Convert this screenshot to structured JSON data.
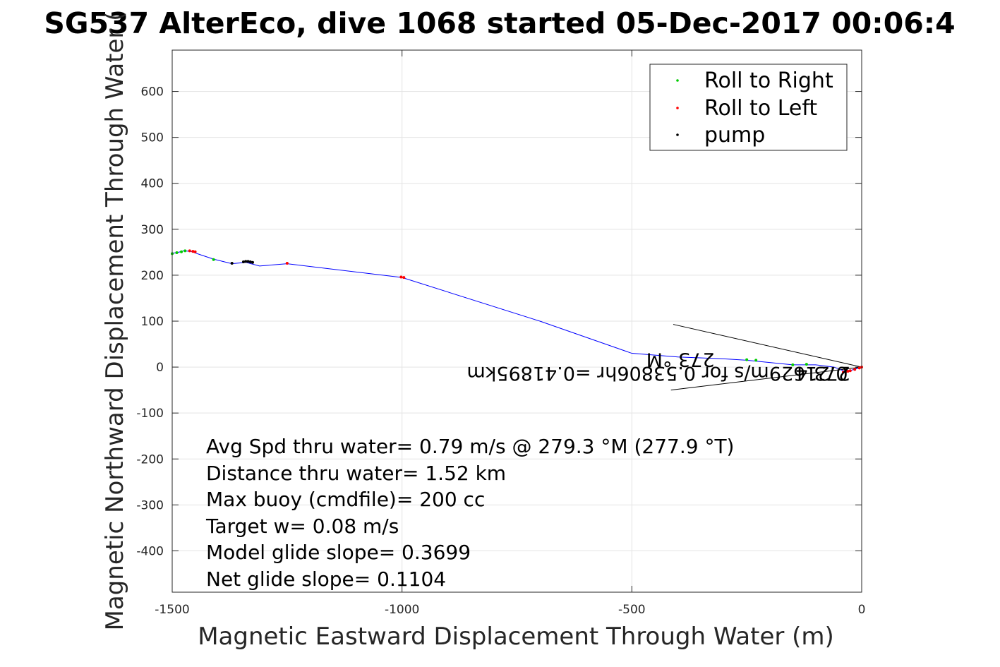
{
  "chart_data": {
    "type": "scatter",
    "title": "SG537 AlterEco, dive 1068 started 05-Dec-2017 00:06:4",
    "xlabel": "Magnetic Eastward Displacement Through Water (m)",
    "ylabel": "Magnetic Northward Displacement Through Water (",
    "xlim": [
      -1500,
      0
    ],
    "ylim": [
      -490,
      690
    ],
    "xticks": [
      -1500,
      -1000,
      -500,
      0
    ],
    "yticks": [
      -400,
      -300,
      -200,
      -100,
      0,
      100,
      200,
      300,
      400,
      500,
      600
    ],
    "grid": true,
    "legend": {
      "placement": "top-right",
      "entries": [
        {
          "label": "Roll to Right",
          "color": "#00cc00"
        },
        {
          "label": "Roll to Left",
          "color": "#ff0000"
        },
        {
          "label": "pump",
          "color": "#000000"
        }
      ]
    },
    "track": {
      "name": "glider track",
      "color": "#0000ff",
      "x": [
        0,
        -10,
        -20,
        -30,
        -40,
        -60,
        -100,
        -150,
        -200,
        -250,
        -300,
        -400,
        -500,
        -700,
        -1000,
        -1250,
        -1310,
        -1340,
        -1370,
        -1410,
        -1440,
        -1460,
        -1475,
        -1490,
        -1500
      ],
      "y": [
        0,
        -3,
        -6,
        -10,
        -8,
        0,
        5,
        5,
        10,
        15,
        18,
        22,
        30,
        100,
        195,
        225,
        220,
        228,
        225,
        235,
        245,
        252,
        253,
        249,
        248
      ]
    },
    "roll_right": {
      "x": [
        -1500,
        -1490,
        -1480,
        -1472,
        -1410,
        -250,
        -230,
        -150,
        -120
      ],
      "y": [
        247,
        249,
        251,
        253,
        234,
        16,
        15,
        5,
        6
      ]
    },
    "roll_left": {
      "x": [
        -1462,
        -1455,
        -1450,
        -1002,
        -996,
        -1250,
        -40,
        -35,
        -30,
        -25,
        -15,
        -5,
        0
      ],
      "y": [
        253,
        252,
        251,
        196,
        195,
        226,
        -11,
        -10,
        -9,
        -8,
        -5,
        -2,
        0
      ]
    },
    "pump": {
      "x": [
        -1370,
        -1345,
        -1340,
        -1335,
        -1330,
        -1325
      ],
      "y": [
        226,
        229,
        230,
        230,
        229,
        228
      ]
    },
    "current_wedge": {
      "upper": {
        "x": [
          -410,
          0
        ],
        "y": [
          93,
          0
        ]
      },
      "lower": {
        "x": [
          -415,
          0
        ],
        "y": [
          -50,
          0
        ]
      }
    },
    "flipped_labels": [
      {
        "text": "0.21629m/s for 0.53806hr =0.41895km",
        "x": -30,
        "y": 0
      },
      {
        "text": "273.4",
        "x": -25,
        "y": 0
      },
      {
        "text": "273 °M",
        "x": -320,
        "y": 30
      }
    ],
    "annotations": [
      "Avg Spd thru water=  0.79 m/s @ 279.3 °M (277.9 °T)",
      "Distance thru water=  1.52 km",
      "Max buoy (cmdfile)= 200 cc",
      "Target w= 0.08 m/s",
      "Model glide slope= 0.3699",
      "Net glide slope= 0.1104"
    ]
  }
}
